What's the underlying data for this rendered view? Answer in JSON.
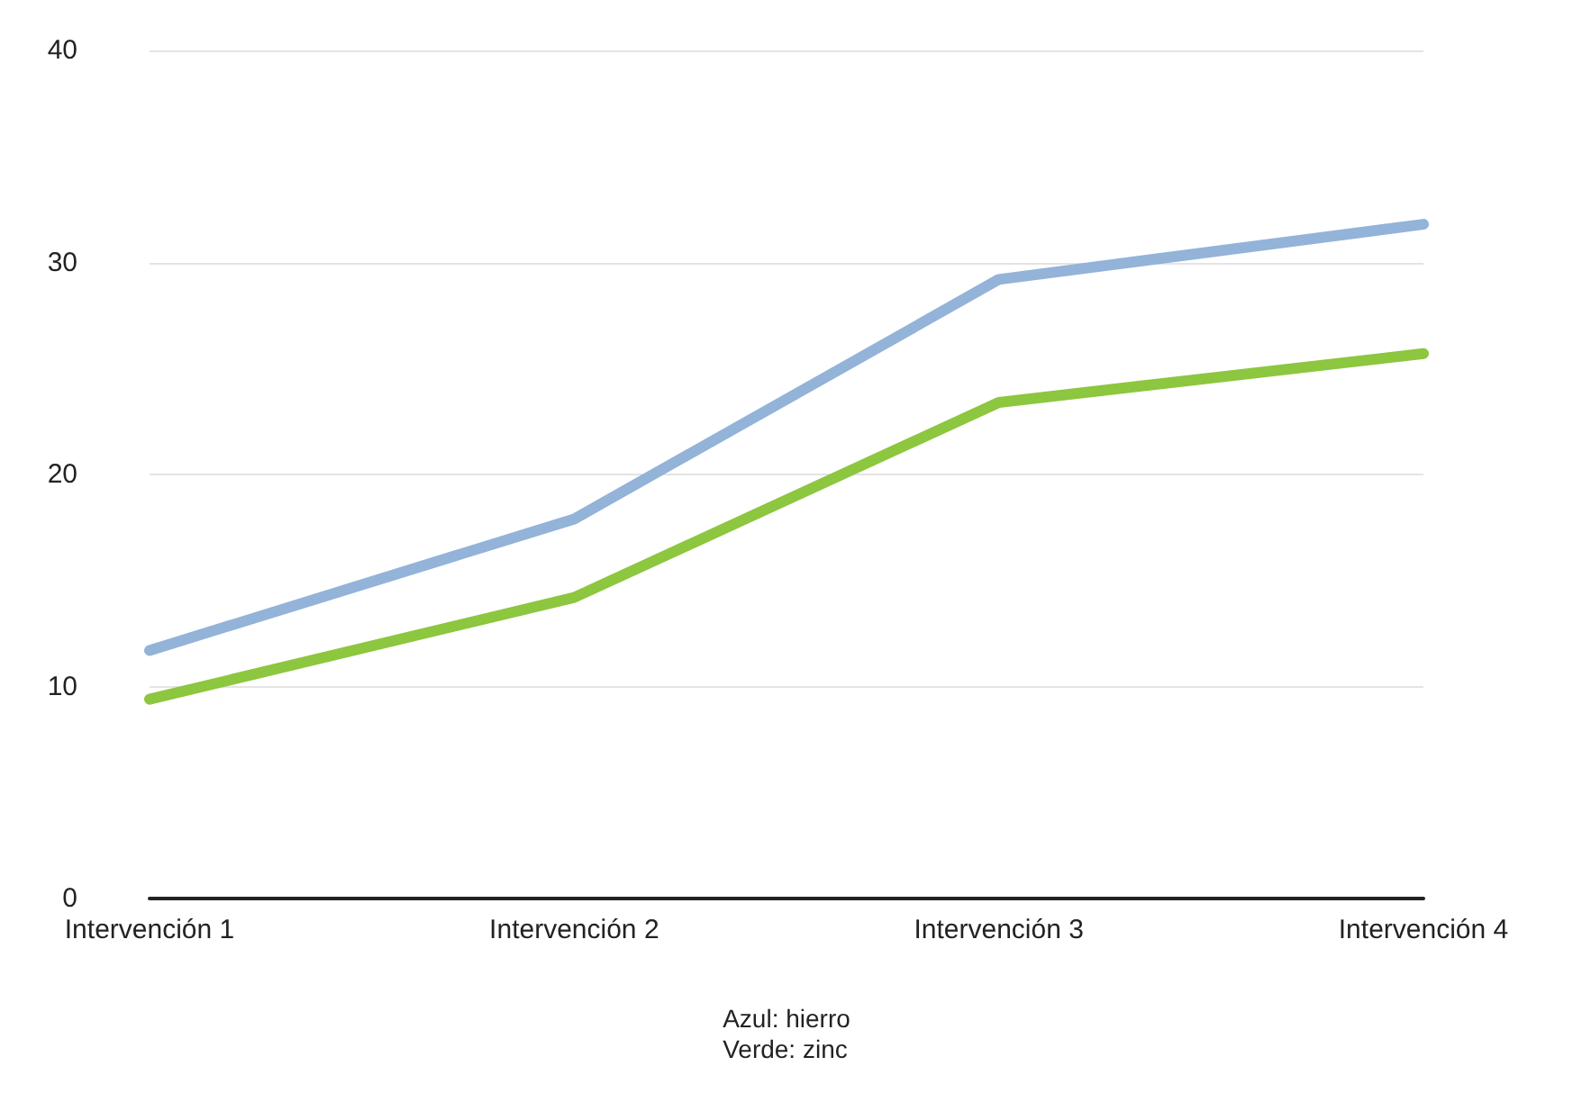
{
  "chart_data": {
    "type": "line",
    "categories": [
      "Intervención 1",
      "Intervención 2",
      "Intervención 3",
      "Intervención 4"
    ],
    "series": [
      {
        "color": "#93b3d9",
        "values": [
          11.7,
          17.9,
          29.2,
          31.8
        ]
      },
      {
        "color": "#8dc63f",
        "values": [
          9.4,
          14.2,
          23.4,
          25.7
        ]
      }
    ],
    "ylim": [
      0,
      40
    ],
    "yticks": [
      0,
      10,
      20,
      30,
      40
    ],
    "grid": "y",
    "marker": "none",
    "line_style": "solid",
    "annotations": [
      "Azul: hierro",
      "Verde: zinc"
    ]
  }
}
